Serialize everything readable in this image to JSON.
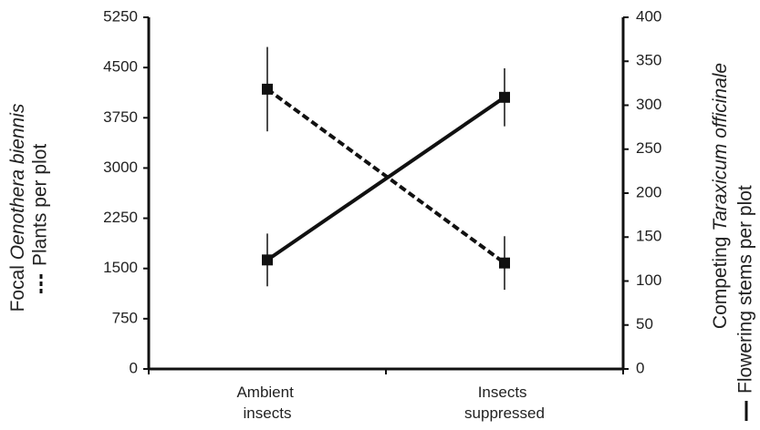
{
  "chart_data": {
    "type": "line",
    "categories": [
      "Ambient insects",
      "Insects suppressed"
    ],
    "ylabel": "Focal Oenothera biennis",
    "y2label": "Competing Taraxicum officinale",
    "ylim": [
      0,
      5250
    ],
    "yticks": [
      0,
      750,
      1500,
      2250,
      3000,
      3750,
      4500,
      5250
    ],
    "y2lim": [
      0,
      400
    ],
    "y2ticks": [
      0,
      50,
      100,
      150,
      200,
      250,
      300,
      350,
      400
    ],
    "series": [
      {
        "name": "Plants per plot",
        "color": "#111111",
        "dash": true,
        "values": [
          4177,
          1582
        ],
        "errors": [
          630,
          400
        ]
      },
      {
        "name": "Flowering stems per plot",
        "color": "#111111",
        "dash": false,
        "axis": "y2",
        "values": [
          124,
          309
        ],
        "errors": [
          30,
          33
        ]
      }
    ]
  }
}
